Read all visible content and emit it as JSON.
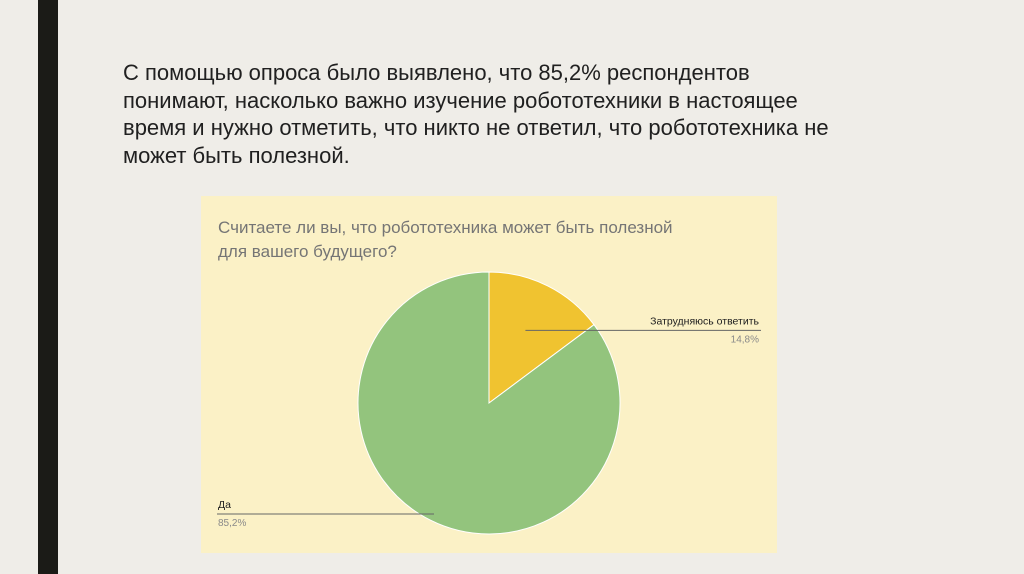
{
  "slide": {
    "text_lines": [
      "С помощью опроса было выявлено, что 85,2% респондентов",
      "понимают, насколько важно изучение робототехники в настоящее",
      "время и нужно отметить, что никто не ответил, что робототехника не",
      "может быть полезной."
    ]
  },
  "chart_data": {
    "type": "pie",
    "title_lines": [
      "Считаете ли вы, что робототехника может быть полезной",
      "для вашего будущего?"
    ],
    "slices": [
      {
        "label": "Затрудняюсь ответить",
        "value": 14.8,
        "value_label": "14,8%",
        "color": "#f0c330"
      },
      {
        "label": "Да",
        "value": 85.2,
        "value_label": "85,2%",
        "color": "#93c47d"
      }
    ]
  },
  "colors": {
    "slide_background": "#efede8",
    "side_bar": "#1b1b17",
    "chart_background": "#fbf1c6"
  }
}
